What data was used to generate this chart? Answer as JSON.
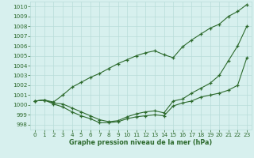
{
  "hours": [
    0,
    1,
    2,
    3,
    4,
    5,
    6,
    7,
    8,
    9,
    10,
    11,
    12,
    13,
    14,
    15,
    16,
    17,
    18,
    19,
    20,
    21,
    22,
    23
  ],
  "line_max": [
    1000.4,
    1000.5,
    1000.3,
    1001.0,
    1001.8,
    1002.3,
    1002.8,
    1003.2,
    1003.7,
    1004.2,
    1004.6,
    1005.0,
    1005.3,
    1005.5,
    1005.1,
    1004.8,
    1005.9,
    1006.6,
    1007.2,
    1007.8,
    1008.2,
    1009.0,
    1009.5,
    1010.2
  ],
  "line_mid": [
    1000.4,
    1000.5,
    1000.2,
    1000.1,
    999.7,
    999.3,
    998.9,
    998.5,
    998.3,
    998.4,
    998.8,
    999.1,
    999.3,
    999.4,
    999.2,
    1000.4,
    1000.6,
    1001.2,
    1001.7,
    1002.2,
    1003.0,
    1004.5,
    1006.0,
    1008.0
  ],
  "line_min": [
    1000.4,
    1000.5,
    1000.1,
    999.8,
    999.3,
    998.9,
    998.6,
    998.2,
    998.2,
    998.3,
    998.6,
    998.8,
    998.9,
    999.0,
    998.9,
    999.9,
    1000.2,
    1000.4,
    1000.8,
    1001.0,
    1001.2,
    1001.5,
    1002.0,
    1004.8
  ],
  "line_color": "#2d6a2d",
  "bg_color": "#d7f0ee",
  "grid_color": "#b8ddd9",
  "xlabel": "Graphe pression niveau de la mer (hPa)",
  "ylim": [
    997.5,
    1010.5
  ],
  "xlim": [
    -0.5,
    23.5
  ],
  "yticks": [
    998,
    999,
    1000,
    1001,
    1002,
    1003,
    1004,
    1005,
    1006,
    1007,
    1008,
    1009,
    1010
  ],
  "xticks": [
    0,
    1,
    2,
    3,
    4,
    5,
    6,
    7,
    8,
    9,
    10,
    11,
    12,
    13,
    14,
    15,
    16,
    17,
    18,
    19,
    20,
    21,
    22,
    23
  ],
  "marker": "+",
  "markersize": 3.5,
  "linewidth": 0.8,
  "tick_fontsize": 5.2,
  "xlabel_fontsize": 5.8
}
